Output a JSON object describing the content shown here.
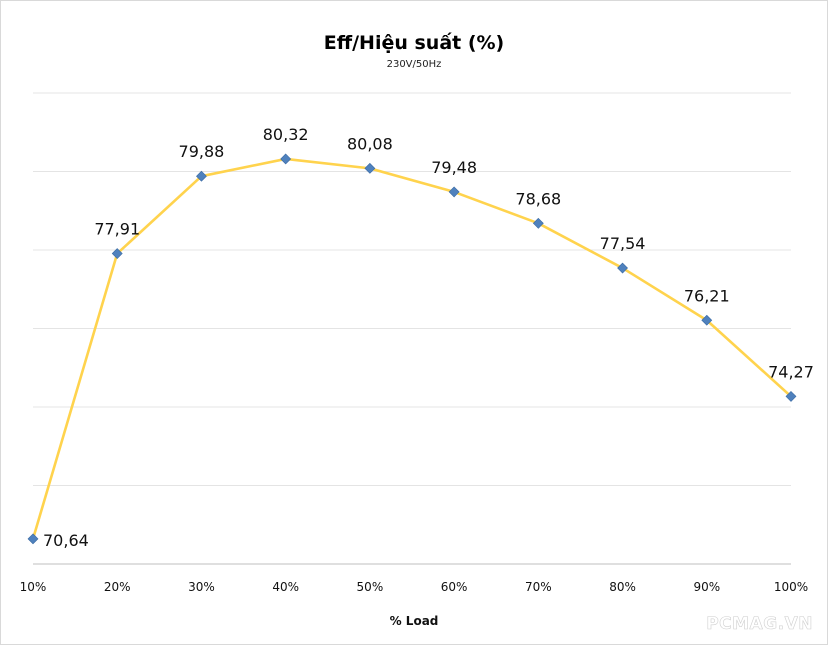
{
  "chart_data": {
    "type": "line",
    "title": "Eff/Hiệu suất (%)",
    "subtitle": "230V/50Hz",
    "xlabel": "% Load",
    "ylabel": "",
    "categories": [
      "10%",
      "20%",
      "30%",
      "40%",
      "50%",
      "60%",
      "70%",
      "80%",
      "90%",
      "100%"
    ],
    "series": [
      {
        "values": [
          70.64,
          77.91,
          79.88,
          80.32,
          80.08,
          79.48,
          78.68,
          77.54,
          76.21,
          74.27
        ],
        "labels": [
          "70,64",
          "77,91",
          "79,88",
          "80,32",
          "80,08",
          "79,48",
          "78,68",
          "77,54",
          "76,21",
          "74,27"
        ],
        "line_color": "#FFD34D",
        "marker_color": "#4F81BD",
        "marker": "diamond"
      }
    ],
    "ylim": [
      70,
      82
    ],
    "gridlines_y": [
      72,
      74,
      76,
      78,
      80,
      82
    ],
    "y_ticks_shown": false,
    "grid": true,
    "legend": "none"
  },
  "watermark": "PCMAG.VN"
}
